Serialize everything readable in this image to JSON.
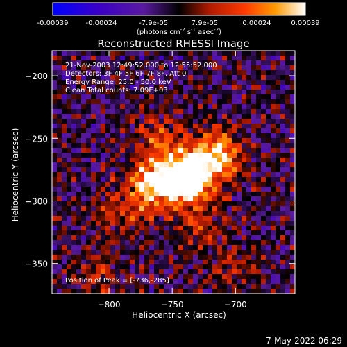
{
  "colorbar": {
    "tick_labels": [
      "-0.00039",
      "-0.00024",
      "-7.9e-05",
      "7.9e-05",
      "0.00024",
      "0.00039"
    ],
    "range": [
      -0.00039,
      0.00039
    ],
    "unit_main": "(photons cm",
    "unit_exp1": "-2",
    "unit_mid": " s",
    "unit_exp2": "-1",
    "unit_end": " asec",
    "unit_exp3": "-2",
    "unit_close": ")"
  },
  "chart_data": {
    "type": "heatmap",
    "title": "Reconstructed RHESSI Image",
    "xlabel": "Heliocentric X (arcsec)",
    "ylabel": "Heliocentric Y (arcsec)",
    "xlim": [
      -845,
      -653
    ],
    "ylim": [
      -374,
      -180
    ],
    "x_ticks": [
      -800,
      -750,
      -700
    ],
    "y_ticks": [
      -200,
      -250,
      -300,
      -350
    ],
    "x_tick_labels": [
      "−800",
      "−750",
      "−700"
    ],
    "y_tick_labels": [
      "−200",
      "−250",
      "−300",
      "−350"
    ],
    "annotations": [
      "21-Nov-2003 12:49:52.000 to 12:55:52.000",
      "Detectors: 3F 4F 5F 6F 7F 8F, Att 0",
      "Energy Range: 25.0 - 50.0 keV",
      "Clean     Total counts: 7.09E+03"
    ],
    "peak_label": "Position of Peak = [-736,-285]",
    "peak": [
      -736,
      -285
    ],
    "sources": [
      {
        "x": -767,
        "y": -288,
        "value": 0.00039
      },
      {
        "x": -737,
        "y": -286,
        "value": 0.00036
      },
      {
        "x": -745,
        "y": -277,
        "value": 0.0003
      },
      {
        "x": -720,
        "y": -268,
        "value": 0.00024
      },
      {
        "x": -712,
        "y": -262,
        "value": 0.00022
      },
      {
        "x": -760,
        "y": -250,
        "value": 0.00018
      },
      {
        "x": -795,
        "y": -308,
        "value": 0.00015
      },
      {
        "x": -730,
        "y": -320,
        "value": 0.00014
      },
      {
        "x": -810,
        "y": -360,
        "value": 0.00012
      },
      {
        "x": -700,
        "y": -355,
        "value": 0.0001
      }
    ]
  },
  "footer": {
    "timestamp": "7-May-2022 06:29"
  }
}
